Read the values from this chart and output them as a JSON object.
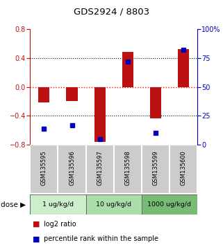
{
  "title": "GDS2924 / 8803",
  "samples": [
    "GSM135595",
    "GSM135596",
    "GSM135597",
    "GSM135598",
    "GSM135599",
    "GSM135600"
  ],
  "log2_ratios": [
    -0.21,
    -0.2,
    -0.76,
    0.49,
    -0.44,
    0.53
  ],
  "percentile_ranks": [
    14,
    17,
    5,
    72,
    10,
    82
  ],
  "bar_color": "#BB1111",
  "dot_color": "#0000BB",
  "ylim_left": [
    -0.8,
    0.8
  ],
  "ylim_right": [
    0,
    100
  ],
  "yticks_left": [
    -0.8,
    -0.4,
    0,
    0.4,
    0.8
  ],
  "yticks_right": [
    0,
    25,
    50,
    75,
    100
  ],
  "ytick_labels_right": [
    "0",
    "25",
    "50",
    "75",
    "100%"
  ],
  "groups": [
    {
      "label": "1 ug/kg/d",
      "indices": [
        0,
        1
      ],
      "color": "#cceecc"
    },
    {
      "label": "10 ug/kg/d",
      "indices": [
        2,
        3
      ],
      "color": "#aaddaa"
    },
    {
      "label": "1000 ug/kg/d",
      "indices": [
        4,
        5
      ],
      "color": "#77bb77"
    }
  ],
  "legend_red": "log2 ratio",
  "legend_blue": "percentile rank within the sample",
  "label_area_color": "#cccccc",
  "bar_width": 0.4
}
